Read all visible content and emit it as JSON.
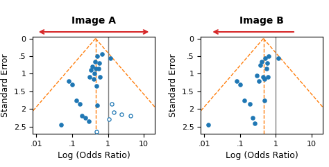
{
  "chart_data": [
    {
      "type": "scatter",
      "title": "Image A",
      "x_label": "Log (Odds Ratio)",
      "y_label": "Standard Error",
      "log": "x",
      "xlim": [
        0.008,
        20
      ],
      "ylim": [
        2.7,
        -0.05
      ],
      "xticks": [
        {
          "value": 0.01,
          "label": ".01"
        },
        {
          "value": 0.1,
          "label": ".1"
        },
        1,
        10
      ],
      "yticks": [
        0,
        {
          "value": 0.5,
          "label": ".5"
        },
        1,
        1.5,
        2,
        2.5
      ],
      "annotations": [
        {
          "arrow": "both",
          "color": "#d62728"
        }
      ],
      "series": [
        {
          "type": "line",
          "line_style": "dashed",
          "color": "#ff7f0e",
          "x": [
            0.45,
            0.003351
          ],
          "y": [
            0,
            2.5
          ]
        },
        {
          "type": "line",
          "line_style": "dashed",
          "color": "#ff7f0e",
          "x": [
            0.45,
            60.4304
          ],
          "y": [
            0,
            2.5
          ]
        },
        {
          "type": "vline",
          "line_style": "dashed",
          "color": "#ff7f0e",
          "x": 0.45
        },
        {
          "type": "vline",
          "line_style": "solid",
          "color": "#7f7f7f",
          "x": 1.0
        },
        {
          "type": "scatter",
          "marker": "filled",
          "color": "#1f77b4",
          "x": [
            0.05,
            0.08,
            0.1,
            0.13,
            0.16,
            0.19,
            0.23,
            0.29,
            0.31,
            0.34,
            0.37,
            0.4,
            0.42,
            0.43,
            0.45,
            0.47,
            0.49,
            0.5,
            0.54,
            0.57,
            0.61,
            0.67,
            1.15
          ],
          "y": [
            2.45,
            1.2,
            1.3,
            1.75,
            1.85,
            2.2,
            2.25,
            2.35,
            1.1,
            0.9,
            0.8,
            1.15,
            1.0,
            0.65,
            0.85,
            1.35,
            0.5,
            1.9,
            0.85,
            0.7,
            1.1,
            0.45,
            0.55
          ]
        },
        {
          "type": "scatter",
          "marker": "open",
          "color": "#1f77b4",
          "x": [
            0.48,
            1.05,
            1.25,
            1.45,
            2.4,
            4.2
          ],
          "y": [
            2.65,
            2.3,
            1.85,
            2.1,
            2.15,
            2.2
          ]
        }
      ]
    },
    {
      "type": "scatter",
      "title": "Image B",
      "x_label": "Log (Odds Ratio)",
      "y_label": "Standard Error",
      "log": "x",
      "xlim": [
        0.008,
        20
      ],
      "ylim": [
        2.7,
        -0.05
      ],
      "xticks": [
        {
          "value": 0.01,
          "label": ".01"
        },
        {
          "value": 0.1,
          "label": ".1"
        },
        1,
        10
      ],
      "yticks": [
        0,
        {
          "value": 0.5,
          "label": ".5"
        },
        1,
        1.5,
        2,
        2.5
      ],
      "annotations": [
        {
          "arrow": "left",
          "color": "#d62728"
        }
      ],
      "series": [
        {
          "type": "line",
          "line_style": "dashed",
          "color": "#ff7f0e",
          "x": [
            0.45,
            0.003351
          ],
          "y": [
            0,
            2.5
          ]
        },
        {
          "type": "line",
          "line_style": "dashed",
          "color": "#ff7f0e",
          "x": [
            0.45,
            60.4304
          ],
          "y": [
            0,
            2.5
          ]
        },
        {
          "type": "vline",
          "line_style": "dashed",
          "color": "#ff7f0e",
          "x": 0.45
        },
        {
          "type": "vline",
          "line_style": "solid",
          "color": "#7f7f7f",
          "x": 1.0
        },
        {
          "type": "scatter",
          "marker": "filled",
          "color": "#1f77b4",
          "x": [
            0.013,
            0.08,
            0.1,
            0.13,
            0.19,
            0.23,
            0.26,
            0.29,
            0.33,
            0.37,
            0.41,
            0.44,
            0.47,
            0.49,
            0.51,
            0.54,
            0.57,
            0.61,
            0.64,
            1.15
          ],
          "y": [
            2.45,
            1.2,
            1.3,
            1.75,
            1.85,
            2.25,
            2.4,
            1.05,
            1.2,
            0.75,
            0.65,
            1.1,
            1.15,
            1.75,
            0.55,
            0.85,
            0.7,
            1.1,
            0.5,
            0.55
          ]
        }
      ]
    }
  ]
}
